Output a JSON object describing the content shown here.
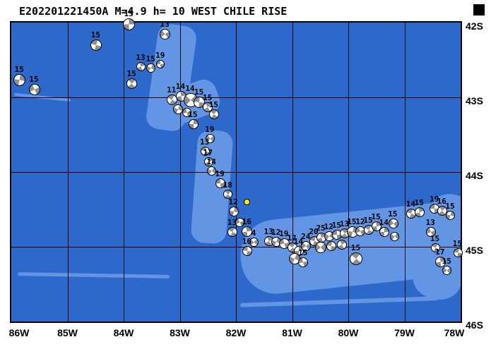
{
  "title": "E202201221450A M=4.9 h= 10 WEST CHILE RISE",
  "map": {
    "lon_ticks": [
      "86W",
      "85W",
      "84W",
      "83W",
      "82W",
      "81W",
      "80W",
      "79W",
      "78W"
    ],
    "lat_ticks": [
      "42S",
      "43S",
      "44S",
      "45S",
      "46S"
    ],
    "lon_range": [
      -86,
      -78
    ],
    "lat_range": [
      -46,
      -42
    ],
    "colors": {
      "ocean": "#2d68cb",
      "ridge": "#6395e5",
      "frame": "#000000",
      "ball_fill": "#8f8f8f",
      "ball_bg": "#ffffff",
      "highlight": "#ffee00"
    },
    "highlight": {
      "lon": -81.8,
      "lat": -44.4,
      "size": 9
    },
    "events": [
      {
        "lon": -83.9,
        "lat": -42.02,
        "depth": 15,
        "size": 17
      },
      {
        "lon": -83.26,
        "lat": -42.16,
        "depth": 13,
        "size": 15
      },
      {
        "lon": -84.49,
        "lat": -42.3,
        "depth": 15,
        "size": 16
      },
      {
        "lon": -83.69,
        "lat": -42.59,
        "depth": 13,
        "size": 13
      },
      {
        "lon": -83.51,
        "lat": -42.61,
        "depth": 15,
        "size": 13
      },
      {
        "lon": -83.34,
        "lat": -42.56,
        "depth": 19,
        "size": 12
      },
      {
        "lon": -83.85,
        "lat": -42.82,
        "depth": 15,
        "size": 15
      },
      {
        "lon": -85.85,
        "lat": -42.77,
        "depth": 15,
        "size": 17
      },
      {
        "lon": -85.59,
        "lat": -42.9,
        "depth": 15,
        "size": 16
      },
      {
        "lon": -83.14,
        "lat": -43.03,
        "depth": 11,
        "size": 15
      },
      {
        "lon": -82.98,
        "lat": -42.99,
        "depth": 14,
        "size": 15
      },
      {
        "lon": -82.81,
        "lat": -43.04,
        "depth": 14,
        "size": 20
      },
      {
        "lon": -82.65,
        "lat": -43.07,
        "depth": 15,
        "size": 16
      },
      {
        "lon": -82.5,
        "lat": -43.13,
        "depth": 15,
        "size": 14
      },
      {
        "lon": -83.03,
        "lat": -43.16,
        "depth": null,
        "size": 14
      },
      {
        "lon": -82.88,
        "lat": -43.2,
        "depth": null,
        "size": 13
      },
      {
        "lon": -82.39,
        "lat": -43.23,
        "depth": 15,
        "size": 14
      },
      {
        "lon": -82.76,
        "lat": -43.36,
        "depth": 15,
        "size": 14
      },
      {
        "lon": -82.46,
        "lat": -43.55,
        "depth": 19,
        "size": 13
      },
      {
        "lon": -82.55,
        "lat": -43.72,
        "depth": 13,
        "size": 13
      },
      {
        "lon": -82.49,
        "lat": -43.86,
        "depth": 17,
        "size": 13
      },
      {
        "lon": -82.43,
        "lat": -43.99,
        "depth": 14,
        "size": 13
      },
      {
        "lon": -82.28,
        "lat": -44.15,
        "depth": 19,
        "size": 14
      },
      {
        "lon": -82.14,
        "lat": -44.3,
        "depth": 18,
        "size": 13
      },
      {
        "lon": -82.04,
        "lat": -44.53,
        "depth": 12,
        "size": 14
      },
      {
        "lon": -81.93,
        "lat": -44.67,
        "depth": null,
        "size": 13
      },
      {
        "lon": -82.06,
        "lat": -44.8,
        "depth": 13,
        "size": 14
      },
      {
        "lon": -81.8,
        "lat": -44.8,
        "depth": 16,
        "size": 15
      },
      {
        "lon": -81.68,
        "lat": -44.94,
        "depth": 4,
        "size": 13
      },
      {
        "lon": -81.8,
        "lat": -45.06,
        "depth": 16,
        "size": 14
      },
      {
        "lon": -81.41,
        "lat": -44.92,
        "depth": 13,
        "size": 14
      },
      {
        "lon": -81.28,
        "lat": -44.93,
        "depth": 12,
        "size": 14
      },
      {
        "lon": -81.14,
        "lat": -44.96,
        "depth": 19,
        "size": 15
      },
      {
        "lon": -81.0,
        "lat": -45.01,
        "depth": 12,
        "size": 14
      },
      {
        "lon": -80.88,
        "lat": -45.06,
        "depth": 14,
        "size": 14
      },
      {
        "lon": -80.75,
        "lat": -44.99,
        "depth": 24,
        "size": 14
      },
      {
        "lon": -80.61,
        "lat": -44.92,
        "depth": 20,
        "size": 14
      },
      {
        "lon": -80.48,
        "lat": -44.88,
        "depth": 25,
        "size": 14
      },
      {
        "lon": -80.34,
        "lat": -44.86,
        "depth": 12,
        "size": 14
      },
      {
        "lon": -80.2,
        "lat": -44.84,
        "depth": 15,
        "size": 14
      },
      {
        "lon": -80.06,
        "lat": -44.82,
        "depth": 13,
        "size": 14
      },
      {
        "lon": -79.93,
        "lat": -44.8,
        "depth": 15,
        "size": 16
      },
      {
        "lon": -79.78,
        "lat": -44.79,
        "depth": 12,
        "size": 14
      },
      {
        "lon": -79.64,
        "lat": -44.77,
        "depth": 15,
        "size": 14
      },
      {
        "lon": -79.5,
        "lat": -44.73,
        "depth": 15,
        "size": 14
      },
      {
        "lon": -80.49,
        "lat": -45.01,
        "depth": null,
        "size": 16
      },
      {
        "lon": -80.3,
        "lat": -44.99,
        "depth": null,
        "size": 14
      },
      {
        "lon": -80.11,
        "lat": -44.97,
        "depth": null,
        "size": 14
      },
      {
        "lon": -80.95,
        "lat": -45.16,
        "depth": null,
        "size": 16
      },
      {
        "lon": -80.8,
        "lat": -45.21,
        "depth": 15,
        "size": 14
      },
      {
        "lon": -79.86,
        "lat": -45.16,
        "depth": 15,
        "size": 18
      },
      {
        "lon": -79.36,
        "lat": -44.8,
        "depth": 14,
        "size": 14
      },
      {
        "lon": -79.2,
        "lat": -44.69,
        "depth": 15,
        "size": 14
      },
      {
        "lon": -78.88,
        "lat": -44.56,
        "depth": 14,
        "size": 14
      },
      {
        "lon": -78.73,
        "lat": -44.54,
        "depth": 15,
        "size": 14
      },
      {
        "lon": -79.18,
        "lat": -44.86,
        "depth": null,
        "size": 13
      },
      {
        "lon": -78.46,
        "lat": -44.49,
        "depth": 19,
        "size": 14
      },
      {
        "lon": -78.33,
        "lat": -44.52,
        "depth": 16,
        "size": 14
      },
      {
        "lon": -78.18,
        "lat": -44.58,
        "depth": 15,
        "size": 13
      },
      {
        "lon": -78.53,
        "lat": -44.8,
        "depth": 13,
        "size": 14
      },
      {
        "lon": -78.45,
        "lat": -45.01,
        "depth": 15,
        "size": 13
      },
      {
        "lon": -78.36,
        "lat": -45.2,
        "depth": 17,
        "size": 15
      },
      {
        "lon": -78.24,
        "lat": -45.32,
        "depth": 15,
        "size": 13
      },
      {
        "lon": -78.05,
        "lat": -45.08,
        "depth": 15,
        "size": 13
      }
    ]
  }
}
